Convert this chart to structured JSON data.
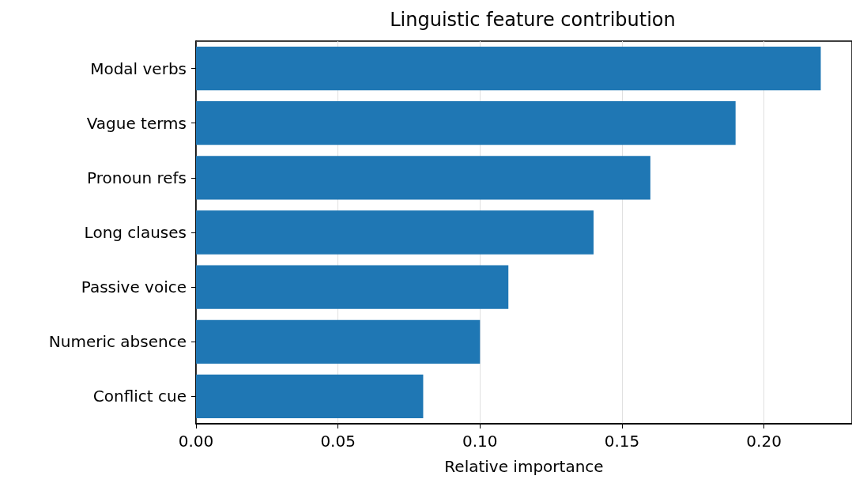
{
  "chart_data": {
    "type": "bar",
    "orientation": "horizontal",
    "title": "Linguistic feature contribution",
    "xlabel": "Relative importance",
    "categories": [
      "Modal verbs",
      "Vague terms",
      "Pronoun refs",
      "Long clauses",
      "Passive voice",
      "Numeric absence",
      "Conflict cue"
    ],
    "values": [
      0.22,
      0.19,
      0.16,
      0.14,
      0.11,
      0.1,
      0.08
    ],
    "color": "#1f77b4",
    "xlim": [
      0,
      0.231
    ],
    "xticks": [
      {
        "value": 0,
        "label": "0.00"
      },
      {
        "value": 0.05,
        "label": "0.05"
      },
      {
        "value": 0.1,
        "label": "0.10"
      },
      {
        "value": 0.15,
        "label": "0.15"
      },
      {
        "value": 0.2,
        "label": "0.20"
      }
    ],
    "grid": "x"
  }
}
